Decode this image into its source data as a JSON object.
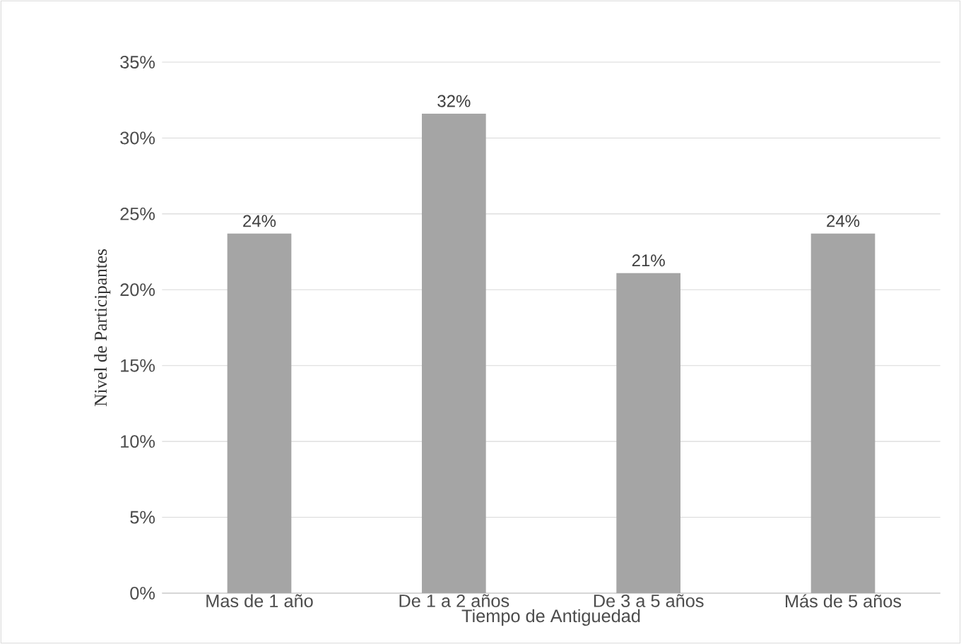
{
  "chart_data": {
    "type": "bar",
    "xlabel": "Tiempo de Antiguedad",
    "ylabel": "Nivel de Participantes",
    "categories": [
      "Mas de 1 año",
      "De 1  a 2 años",
      "De 3 a 5 años",
      "Más de 5 años"
    ],
    "values": [
      23.7,
      31.6,
      21.1,
      23.7
    ],
    "value_labels": [
      "24%",
      "32%",
      "21%",
      "24%"
    ],
    "color": "#a5a5a5",
    "ylim": [
      0,
      35
    ],
    "yticks": [
      {
        "value": 0,
        "label": "0%"
      },
      {
        "value": 5,
        "label": "5%"
      },
      {
        "value": 10,
        "label": "10%"
      },
      {
        "value": 15,
        "label": "15%"
      },
      {
        "value": 20,
        "label": "20%"
      },
      {
        "value": 25,
        "label": "25%"
      },
      {
        "value": 30,
        "label": "30%"
      },
      {
        "value": 35,
        "label": "35%"
      }
    ],
    "grid": "y"
  }
}
